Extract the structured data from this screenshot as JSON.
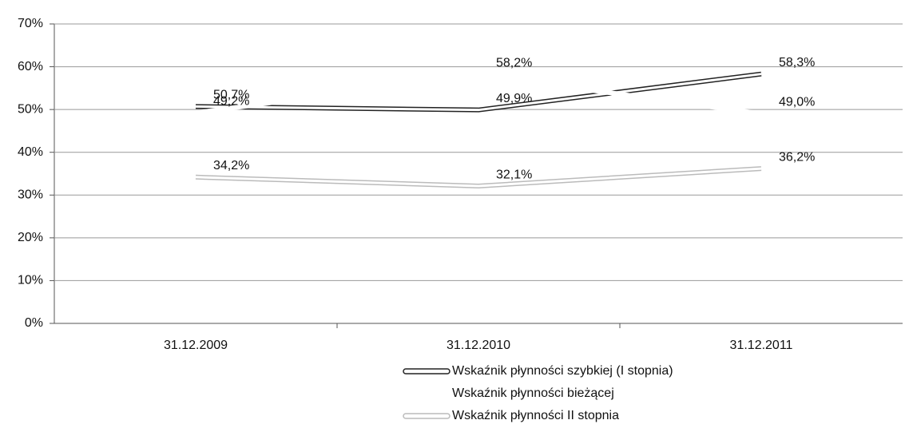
{
  "chart_data": {
    "type": "line",
    "categories": [
      "31.12.2009",
      "31.12.2010",
      "31.12.2011"
    ],
    "series": [
      {
        "name": "Wskaźnik płynności szybkiej (I stopnia)",
        "color": "#222222",
        "values": [
          50.7,
          49.9,
          58.3
        ],
        "value_labels": [
          "50,7%",
          "49,9%",
          "58,3%"
        ]
      },
      {
        "name": "Wskaźnik płynności bieżącej",
        "color": "#ffffff",
        "values": [
          49.2,
          58.2,
          49.0
        ],
        "value_labels": [
          "49,2%",
          "58,2%",
          "49,0%"
        ]
      },
      {
        "name": "Wskaźnik płynności II stopnia",
        "color": "#bbbbbb",
        "values": [
          34.2,
          32.1,
          36.2
        ],
        "value_labels": [
          "34,2%",
          "32,1%",
          "36,2%"
        ]
      }
    ],
    "ylim": [
      0,
      70
    ],
    "yticks": [
      {
        "value": 0,
        "label": "0%"
      },
      {
        "value": 10,
        "label": "10%"
      },
      {
        "value": 20,
        "label": "20%"
      },
      {
        "value": 30,
        "label": "30%"
      },
      {
        "value": 40,
        "label": "40%"
      },
      {
        "value": 50,
        "label": "50%"
      },
      {
        "value": 60,
        "label": "60%"
      },
      {
        "value": 70,
        "label": "70%"
      }
    ],
    "grid": true
  }
}
